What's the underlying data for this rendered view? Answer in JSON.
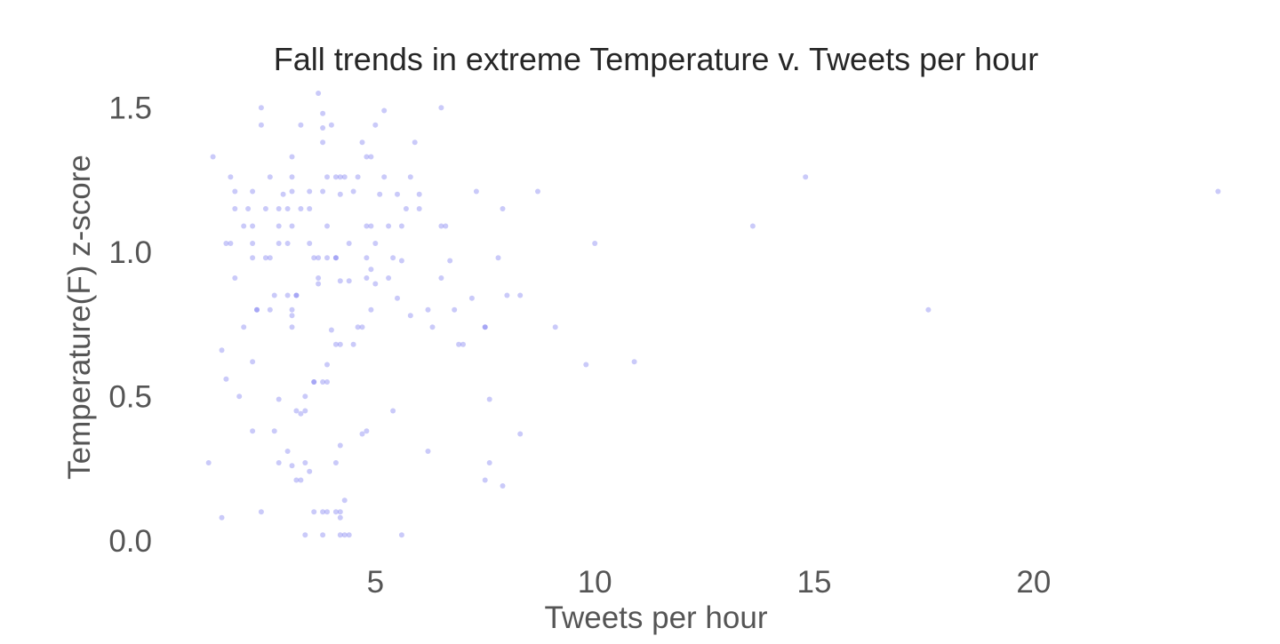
{
  "chart_data": {
    "type": "scatter",
    "title": "Fall trends in extreme Temperature v. Tweets per hour",
    "xlabel": "Tweets per hour",
    "ylabel": "Temperature(F) z-score",
    "xlim": [
      0.7,
      24.6
    ],
    "ylim": [
      -0.05,
      1.55
    ],
    "xticks": [
      5,
      10,
      15,
      20
    ],
    "yticks": [
      0.0,
      0.5,
      1.0,
      1.5
    ],
    "ytick_labels": [
      "0.0",
      "0.5",
      "1.0",
      "1.5"
    ],
    "grid": false,
    "legend": "none",
    "marker_color": "#6666ee",
    "series": [
      {
        "points": [
          [
            1.3,
            1.33
          ],
          [
            1.7,
            1.26
          ],
          [
            1.8,
            1.21
          ],
          [
            1.6,
            1.03
          ],
          [
            1.7,
            1.03
          ],
          [
            1.8,
            1.15
          ],
          [
            2.0,
            1.09
          ],
          [
            1.8,
            0.91
          ],
          [
            2.2,
            0.98
          ],
          [
            2.1,
            1.15
          ],
          [
            2.2,
            1.21
          ],
          [
            2.2,
            1.09
          ],
          [
            2.2,
            1.03
          ],
          [
            2.4,
            1.5
          ],
          [
            2.4,
            1.44
          ],
          [
            2.5,
            1.15
          ],
          [
            2.5,
            0.98
          ],
          [
            2.6,
            1.26
          ],
          [
            2.6,
            0.98
          ],
          [
            2.8,
            1.15
          ],
          [
            2.8,
            1.09
          ],
          [
            2.8,
            1.03
          ],
          [
            2.9,
            1.2
          ],
          [
            3.0,
            1.03
          ],
          [
            3.1,
            1.26
          ],
          [
            3.1,
            1.33
          ],
          [
            3.1,
            1.09
          ],
          [
            3.0,
            1.15
          ],
          [
            3.1,
            1.21
          ],
          [
            3.2,
            0.85
          ],
          [
            3.3,
            1.44
          ],
          [
            3.3,
            1.15
          ],
          [
            3.5,
            1.15
          ],
          [
            3.5,
            1.21
          ],
          [
            3.5,
            1.03
          ],
          [
            3.6,
            0.98
          ],
          [
            3.7,
            1.55
          ],
          [
            3.8,
            1.48
          ],
          [
            3.8,
            1.43
          ],
          [
            3.8,
            1.38
          ],
          [
            3.8,
            1.21
          ],
          [
            3.9,
            1.09
          ],
          [
            3.9,
            1.26
          ],
          [
            4.0,
            1.44
          ],
          [
            4.1,
            1.26
          ],
          [
            4.2,
            1.2
          ],
          [
            4.2,
            1.26
          ],
          [
            4.3,
            1.26
          ],
          [
            4.4,
            1.03
          ],
          [
            4.5,
            1.21
          ],
          [
            4.6,
            1.26
          ],
          [
            4.7,
            1.38
          ],
          [
            4.8,
            1.33
          ],
          [
            4.8,
            1.09
          ],
          [
            4.9,
            1.33
          ],
          [
            4.9,
            1.09
          ],
          [
            5.0,
            1.44
          ],
          [
            5.0,
            1.03
          ],
          [
            5.1,
            1.2
          ],
          [
            5.2,
            1.26
          ],
          [
            5.2,
            1.49
          ],
          [
            5.3,
            1.09
          ],
          [
            5.5,
            1.2
          ],
          [
            5.6,
            1.09
          ],
          [
            5.7,
            1.15
          ],
          [
            5.8,
            1.26
          ],
          [
            5.9,
            1.38
          ],
          [
            6.0,
            1.2
          ],
          [
            6.0,
            1.15
          ],
          [
            6.5,
            1.5
          ],
          [
            6.5,
            1.09
          ],
          [
            6.6,
            1.09
          ],
          [
            7.3,
            1.21
          ],
          [
            7.9,
            1.15
          ],
          [
            8.7,
            1.21
          ],
          [
            10.0,
            1.03
          ],
          [
            13.6,
            1.09
          ],
          [
            14.8,
            1.26
          ],
          [
            24.2,
            1.21
          ],
          [
            1.5,
            0.66
          ],
          [
            1.6,
            0.56
          ],
          [
            1.9,
            0.5
          ],
          [
            2.0,
            0.74
          ],
          [
            2.2,
            0.62
          ],
          [
            2.3,
            0.8
          ],
          [
            2.3,
            0.8
          ],
          [
            2.6,
            0.8
          ],
          [
            2.7,
            0.85
          ],
          [
            2.8,
            0.49
          ],
          [
            3.0,
            0.85
          ],
          [
            3.1,
            0.74
          ],
          [
            3.1,
            0.8
          ],
          [
            3.1,
            0.78
          ],
          [
            3.2,
            0.85
          ],
          [
            3.4,
            0.45
          ],
          [
            3.4,
            0.5
          ],
          [
            3.6,
            0.55
          ],
          [
            3.7,
            0.98
          ],
          [
            3.7,
            0.91
          ],
          [
            3.7,
            0.89
          ],
          [
            3.8,
            0.55
          ],
          [
            3.9,
            0.61
          ],
          [
            3.9,
            0.55
          ],
          [
            3.9,
            0.98
          ],
          [
            4.0,
            0.73
          ],
          [
            4.1,
            0.98
          ],
          [
            4.1,
            0.68
          ],
          [
            4.1,
            0.98
          ],
          [
            4.2,
            0.9
          ],
          [
            4.2,
            0.68
          ],
          [
            4.4,
            0.9
          ],
          [
            4.5,
            0.68
          ],
          [
            4.6,
            0.74
          ],
          [
            4.7,
            0.74
          ],
          [
            4.8,
            0.91
          ],
          [
            4.8,
            0.98
          ],
          [
            4.9,
            0.8
          ],
          [
            4.9,
            0.94
          ],
          [
            5.0,
            0.89
          ],
          [
            5.3,
            0.91
          ],
          [
            5.4,
            0.98
          ],
          [
            5.5,
            0.84
          ],
          [
            5.6,
            0.97
          ],
          [
            5.8,
            0.78
          ],
          [
            6.2,
            0.8
          ],
          [
            6.3,
            0.74
          ],
          [
            6.5,
            0.91
          ],
          [
            6.7,
            0.97
          ],
          [
            6.8,
            0.8
          ],
          [
            6.9,
            0.68
          ],
          [
            7.0,
            0.68
          ],
          [
            7.2,
            0.84
          ],
          [
            7.5,
            0.74
          ],
          [
            7.5,
            0.74
          ],
          [
            7.8,
            0.98
          ],
          [
            8.0,
            0.85
          ],
          [
            8.3,
            0.85
          ],
          [
            9.1,
            0.74
          ],
          [
            9.8,
            0.61
          ],
          [
            10.9,
            0.62
          ],
          [
            17.6,
            0.8
          ],
          [
            1.2,
            0.27
          ],
          [
            1.5,
            0.08
          ],
          [
            2.2,
            0.38
          ],
          [
            2.4,
            0.1
          ],
          [
            2.7,
            0.38
          ],
          [
            2.8,
            0.27
          ],
          [
            3.0,
            0.31
          ],
          [
            3.1,
            0.26
          ],
          [
            3.2,
            0.45
          ],
          [
            3.2,
            0.21
          ],
          [
            3.3,
            0.44
          ],
          [
            3.3,
            0.21
          ],
          [
            3.4,
            0.27
          ],
          [
            3.4,
            0.02
          ],
          [
            3.5,
            0.24
          ],
          [
            3.6,
            0.1
          ],
          [
            3.6,
            0.55
          ],
          [
            3.8,
            0.02
          ],
          [
            3.8,
            0.1
          ],
          [
            3.9,
            0.1
          ],
          [
            4.1,
            0.1
          ],
          [
            4.1,
            0.27
          ],
          [
            4.2,
            0.1
          ],
          [
            4.2,
            0.02
          ],
          [
            4.2,
            0.08
          ],
          [
            4.2,
            0.33
          ],
          [
            4.3,
            0.02
          ],
          [
            4.3,
            0.14
          ],
          [
            4.4,
            0.02
          ],
          [
            4.7,
            0.37
          ],
          [
            4.8,
            0.38
          ],
          [
            5.4,
            0.45
          ],
          [
            5.6,
            0.02
          ],
          [
            6.2,
            0.31
          ],
          [
            7.6,
            0.49
          ],
          [
            7.6,
            0.27
          ],
          [
            7.5,
            0.21
          ],
          [
            7.9,
            0.19
          ],
          [
            8.3,
            0.37
          ]
        ]
      }
    ]
  }
}
